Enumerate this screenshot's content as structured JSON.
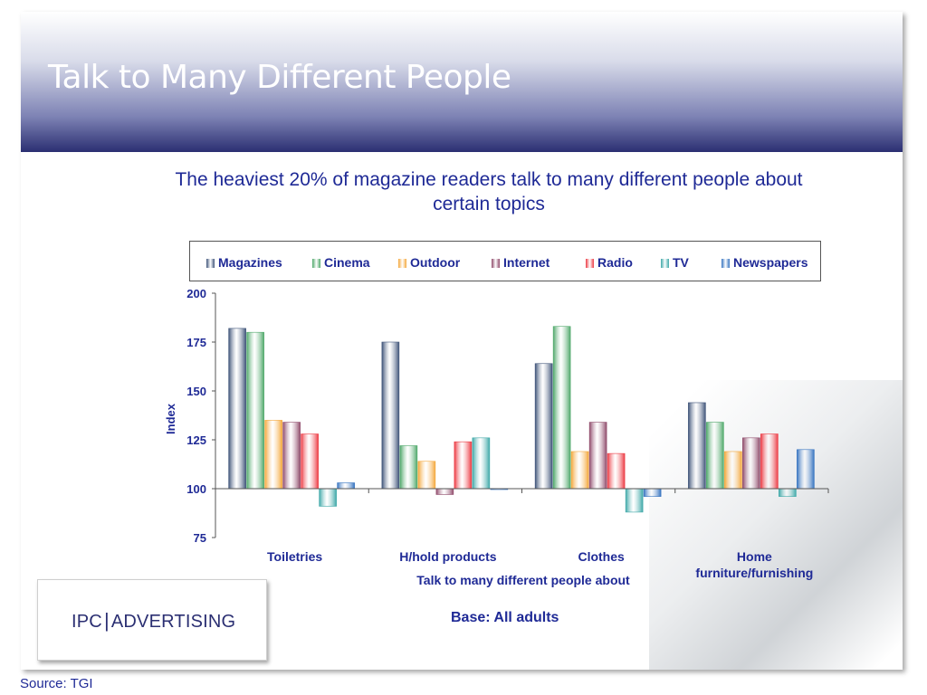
{
  "slide": {
    "title": "Talk to Many Different People",
    "subtitle": "The heaviest 20% of magazine readers talk to many different people about certain topics",
    "logo": "IPC|ADVERTISING",
    "base": "Base:  All adults",
    "source": "Source: TGI"
  },
  "colors": {
    "header_dark": "#2b2f72",
    "text_blue": "#1f2a96"
  },
  "chart_data": {
    "type": "bar",
    "categories": [
      "Toiletries",
      "H/hold products",
      "Clothes",
      "Home furniture/furnishing"
    ],
    "category_lines": [
      [
        "Toiletries"
      ],
      [
        "H/hold products"
      ],
      [
        "Clothes"
      ],
      [
        "Home",
        "furniture/furnishing"
      ]
    ],
    "series": [
      {
        "name": "Magazines",
        "color": "#3f5479",
        "values": [
          182,
          175,
          164,
          144
        ]
      },
      {
        "name": "Cinema",
        "color": "#4fa86a",
        "values": [
          180,
          122,
          183,
          134
        ]
      },
      {
        "name": "Outdoor",
        "color": "#f4a83c",
        "values": [
          135,
          114,
          119,
          119
        ]
      },
      {
        "name": "Internet",
        "color": "#8f4a6a",
        "values": [
          134,
          97,
          134,
          126
        ]
      },
      {
        "name": "Radio",
        "color": "#ec3b44",
        "values": [
          128,
          124,
          118,
          128
        ]
      },
      {
        "name": "TV",
        "color": "#3ea8a8",
        "values": [
          91,
          126,
          88,
          96
        ]
      },
      {
        "name": "Newspapers",
        "color": "#3573c0",
        "values": [
          103,
          100,
          96,
          120
        ]
      }
    ],
    "xlabel": "Talk to many different people about",
    "ylabel": "Index",
    "ylim": [
      75,
      200
    ],
    "baseline": 100,
    "yticks": [
      75,
      100,
      125,
      150,
      175,
      200
    ],
    "legend_position": "top"
  }
}
